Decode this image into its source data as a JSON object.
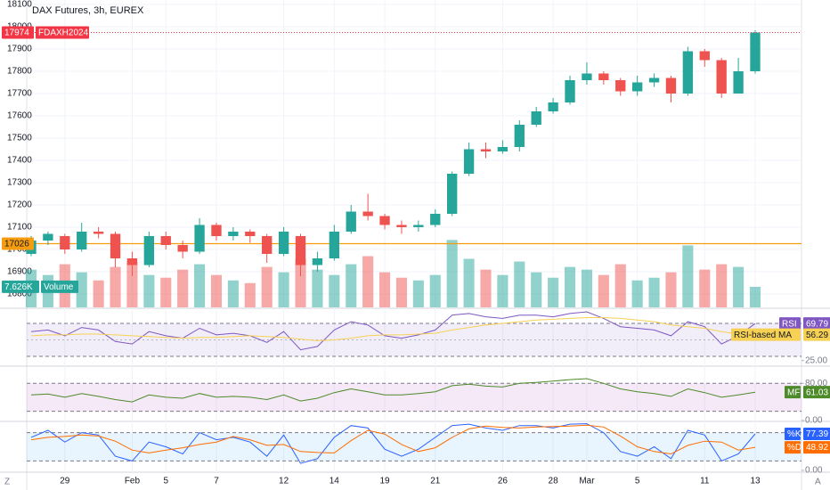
{
  "ui": {
    "scale_left": "Z",
    "scale_right": "A"
  },
  "chart_data": [
    {
      "type": "candlestick",
      "title": "DAX Futures, 3h, EUREX",
      "symbol": "FDAXH2024",
      "categories": [
        null,
        null,
        "29",
        null,
        null,
        null,
        "Feb",
        null,
        "5",
        null,
        null,
        "7",
        null,
        null,
        null,
        "12",
        null,
        null,
        "14",
        null,
        null,
        "19",
        null,
        null,
        "21",
        null,
        null,
        null,
        "26",
        null,
        null,
        "28",
        null,
        "Mar",
        null,
        null,
        "5",
        null,
        null,
        null,
        "11",
        null,
        null,
        "13"
      ],
      "ohlc": [
        [
          16980,
          17060,
          16970,
          17040
        ],
        [
          17040,
          17080,
          17020,
          17070
        ],
        [
          17060,
          17070,
          16980,
          17000
        ],
        [
          17000,
          17120,
          16990,
          17080
        ],
        [
          17080,
          17100,
          17050,
          17070
        ],
        [
          17070,
          17080,
          16920,
          16960
        ],
        [
          16960,
          16990,
          16880,
          16930
        ],
        [
          16930,
          17080,
          16920,
          17060
        ],
        [
          17060,
          17080,
          17000,
          17020
        ],
        [
          17020,
          17040,
          16960,
          16990
        ],
        [
          16990,
          17140,
          16980,
          17110
        ],
        [
          17110,
          17120,
          17040,
          17060
        ],
        [
          17060,
          17100,
          17040,
          17080
        ],
        [
          17080,
          17090,
          17030,
          17060
        ],
        [
          17060,
          17070,
          16940,
          16980
        ],
        [
          16980,
          17100,
          16970,
          17080
        ],
        [
          17060,
          17070,
          16880,
          16930
        ],
        [
          16930,
          16990,
          16900,
          16960
        ],
        [
          16960,
          17110,
          16950,
          17080
        ],
        [
          17080,
          17200,
          17070,
          17170
        ],
        [
          17170,
          17250,
          17130,
          17150
        ],
        [
          17150,
          17160,
          17090,
          17110
        ],
        [
          17110,
          17130,
          17070,
          17100
        ],
        [
          17100,
          17130,
          17080,
          17110
        ],
        [
          17110,
          17180,
          17100,
          17160
        ],
        [
          17160,
          17350,
          17150,
          17340
        ],
        [
          17340,
          17480,
          17330,
          17450
        ],
        [
          17450,
          17480,
          17410,
          17440
        ],
        [
          17440,
          17490,
          17430,
          17460
        ],
        [
          17460,
          17580,
          17440,
          17560
        ],
        [
          17560,
          17640,
          17550,
          17620
        ],
        [
          17620,
          17680,
          17610,
          17660
        ],
        [
          17660,
          17780,
          17650,
          17760
        ],
        [
          17760,
          17840,
          17740,
          17790
        ],
        [
          17790,
          17800,
          17740,
          17760
        ],
        [
          17760,
          17770,
          17690,
          17710
        ],
        [
          17710,
          17780,
          17690,
          17750
        ],
        [
          17750,
          17790,
          17730,
          17770
        ],
        [
          17770,
          17780,
          17660,
          17700
        ],
        [
          17700,
          17910,
          17690,
          17890
        ],
        [
          17890,
          17900,
          17820,
          17850
        ],
        [
          17850,
          17860,
          17680,
          17700
        ],
        [
          17700,
          17860,
          17700,
          17800
        ],
        [
          17800,
          17985,
          17790,
          17974
        ]
      ],
      "up_color": "#26a69a",
      "down_color": "#ef5350",
      "last_color": "#f23645",
      "ylim": [
        16740,
        18120
      ],
      "yticks": [
        16800,
        16900,
        17000,
        17100,
        17200,
        17300,
        17400,
        17500,
        17600,
        17700,
        17800,
        17900,
        18000,
        18100
      ],
      "grid": true,
      "hline": {
        "value": 17026,
        "color": "#f59d0f"
      },
      "volume": {
        "name": "Volume",
        "ylim": [
          0,
          114
        ],
        "values": [
          14,
          12,
          16,
          13,
          10,
          15,
          17,
          12,
          11,
          14,
          16,
          12,
          10,
          9,
          15,
          13,
          18,
          14,
          12,
          16,
          19,
          13,
          11,
          10,
          12,
          25,
          18,
          14,
          12,
          17,
          13,
          11,
          15,
          14,
          12,
          16,
          10,
          11,
          13,
          23,
          14,
          16,
          15,
          7.626
        ],
        "value_labels": [
          null,
          null,
          null,
          null,
          null,
          null,
          null,
          null,
          null,
          null,
          null,
          null,
          null,
          null,
          null,
          null,
          null,
          null,
          null,
          null,
          null,
          null,
          null,
          null,
          null,
          null,
          null,
          null,
          null,
          null,
          null,
          null,
          null,
          null,
          null,
          null,
          null,
          null,
          null,
          null,
          null,
          null,
          null,
          "7.626K"
        ]
      }
    },
    {
      "type": "line",
      "ylim": [
        19.2,
        86.2
      ],
      "yticks": [
        {
          "value": 25,
          "label": "25.00"
        }
      ],
      "band": [
        30,
        70
      ],
      "midline": 50,
      "band_color": "#7e57c2",
      "series": [
        {
          "name": "RSI",
          "color": "#7e57c2",
          "values": [
            60,
            62,
            55,
            65,
            62,
            48,
            45,
            60,
            55,
            52,
            64,
            56,
            58,
            55,
            47,
            60,
            38,
            42,
            62,
            72,
            68,
            55,
            52,
            56,
            62,
            80,
            82,
            78,
            76,
            80,
            80,
            78,
            82,
            84,
            76,
            66,
            64,
            62,
            55,
            72,
            66,
            45,
            55,
            69.79
          ]
        },
        {
          "name": "RSI-based MA",
          "color": "#f7d154",
          "values": [
            55,
            56,
            56,
            57,
            57,
            56,
            55,
            54,
            53,
            52,
            53,
            53,
            54,
            55,
            54,
            53,
            51,
            49,
            50,
            52,
            55,
            56,
            56,
            57,
            58,
            62,
            65,
            68,
            70,
            72,
            74,
            75,
            76,
            77,
            77,
            76,
            74,
            72,
            68,
            66,
            64,
            60,
            57,
            56.29
          ]
        }
      ]
    },
    {
      "type": "line",
      "ylim": [
        0,
        115
      ],
      "yticks": [
        {
          "value": 80,
          "label": "80.00"
        },
        {
          "value": 0,
          "label": "0.00"
        }
      ],
      "band": [
        20,
        80
      ],
      "band_color": "#9c27b0",
      "series": [
        {
          "name": "MF",
          "color": "#4c8a2a",
          "values": [
            55,
            57,
            50,
            58,
            52,
            45,
            40,
            55,
            50,
            48,
            58,
            50,
            52,
            50,
            45,
            55,
            42,
            48,
            60,
            68,
            62,
            55,
            55,
            58,
            62,
            75,
            78,
            74,
            72,
            80,
            82,
            85,
            88,
            90,
            80,
            68,
            62,
            58,
            52,
            68,
            60,
            50,
            55,
            61.03
          ]
        }
      ]
    },
    {
      "type": "line",
      "ylim": [
        0,
        102
      ],
      "yticks": [
        {
          "value": 0,
          "label": "0.00"
        }
      ],
      "band": [
        20,
        80
      ],
      "band_color": "#2196f3",
      "series": [
        {
          "name": "%K",
          "color": "#2962ff",
          "values": [
            70,
            85,
            60,
            80,
            75,
            30,
            20,
            60,
            50,
            35,
            80,
            65,
            70,
            60,
            30,
            75,
            15,
            25,
            70,
            95,
            90,
            45,
            30,
            45,
            70,
            95,
            98,
            90,
            85,
            95,
            95,
            90,
            98,
            99,
            80,
            40,
            30,
            50,
            25,
            85,
            75,
            20,
            35,
            77.39
          ]
        },
        {
          "name": "%D",
          "color": "#ff6d00",
          "values": [
            65,
            70,
            72,
            75,
            73,
            62,
            43,
            37,
            43,
            48,
            55,
            60,
            72,
            65,
            53,
            55,
            40,
            38,
            37,
            63,
            85,
            77,
            55,
            40,
            48,
            70,
            88,
            94,
            91,
            90,
            92,
            93,
            94,
            96,
            92,
            73,
            50,
            40,
            35,
            53,
            62,
            60,
            43,
            48.92
          ]
        }
      ]
    }
  ]
}
